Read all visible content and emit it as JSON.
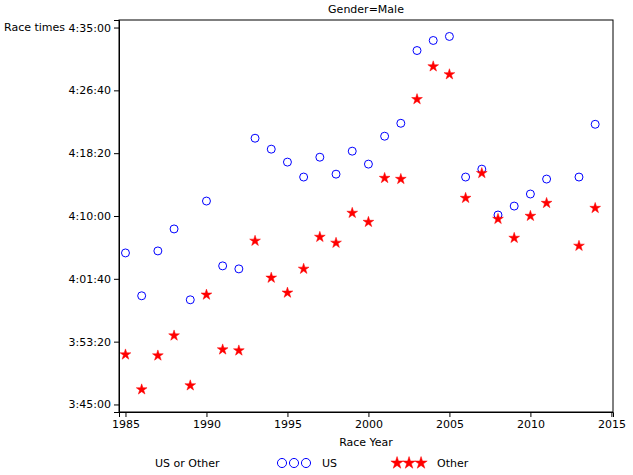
{
  "chart_data": {
    "type": "scatter",
    "title": "Gender=Male",
    "x_label": "Race Year",
    "y_label": "Race times",
    "legend_title": "US or Other",
    "legend": "bottom",
    "grid": false,
    "x": [
      1985,
      1986,
      1987,
      1988,
      1989,
      1990,
      1991,
      1992,
      1993,
      1994,
      1995,
      1996,
      1997,
      1998,
      1999,
      2000,
      2001,
      2002,
      2003,
      2004,
      2005,
      2006,
      2007,
      2008,
      2009,
      2010,
      2011,
      2013,
      2014
    ],
    "series": [
      {
        "name": "US",
        "color": "#0000ff",
        "marker": "circle",
        "values": [
          14706,
          14365,
          14722,
          14897,
          14333,
          15119,
          14603,
          14579,
          15619,
          15532,
          15429,
          15310,
          15468,
          15333,
          15516,
          15413,
          15635,
          15738,
          16317,
          16397,
          16429,
          15310,
          15373,
          15008,
          15079,
          15175,
          15294,
          15310,
          15730
        ]
      },
      {
        "name": "Other",
        "color": "#ff0000",
        "marker": "star",
        "values": [
          13897,
          13619,
          13889,
          14048,
          13651,
          14373,
          13937,
          13929,
          14802,
          14508,
          14389,
          14579,
          14833,
          14786,
          15024,
          14952,
          15302,
          15294,
          15929,
          16190,
          16127,
          15143,
          15341,
          14976,
          14825,
          15000,
          15103,
          14762,
          15063
        ]
      }
    ],
    "xlim": [
      1984.6,
      2015.1
    ],
    "xticks": [
      1985,
      1990,
      1995,
      2000,
      2005,
      2010,
      2015
    ],
    "ylim": [
      13440,
      16560
    ],
    "yticks": [
      {
        "value": 13500,
        "label": "3:45:00"
      },
      {
        "value": 14000,
        "label": "3:53:20"
      },
      {
        "value": 14500,
        "label": "4:01:40"
      },
      {
        "value": 15000,
        "label": "4:10:00"
      },
      {
        "value": 15500,
        "label": "4:18:20"
      },
      {
        "value": 16000,
        "label": "4:26:40"
      },
      {
        "value": 16500,
        "label": "4:35:00"
      }
    ]
  }
}
